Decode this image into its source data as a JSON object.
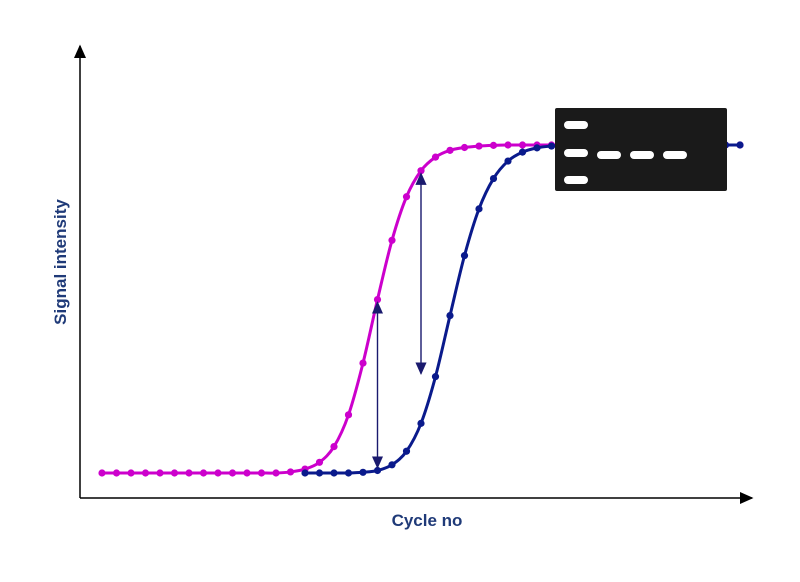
{
  "chart_data": {
    "type": "line",
    "xlabel": "Cycle no",
    "ylabel": "Signal intensity",
    "grid": false,
    "legend": "none",
    "x_ticks_shown": false,
    "y_ticks_shown": false,
    "xlim": [
      0,
      45
    ],
    "ylim": [
      0,
      100
    ],
    "series": [
      {
        "color": "#cc00cc",
        "x": [
          1,
          2,
          3,
          4,
          5,
          6,
          7,
          8,
          9,
          10,
          11,
          12,
          13,
          14,
          15,
          16,
          17,
          18,
          19,
          20,
          21,
          22,
          23,
          24,
          25,
          26,
          27,
          28,
          29,
          30,
          31,
          32,
          33,
          34,
          35,
          36,
          37,
          38,
          39,
          40,
          41,
          42,
          43,
          44,
          45
        ],
        "y": [
          7,
          7,
          7,
          7,
          7,
          7,
          7,
          7,
          7,
          7,
          7,
          7,
          7,
          7.3,
          8.1,
          10,
          14.4,
          23.3,
          37.8,
          55.6,
          72.2,
          84.4,
          91.7,
          95.5,
          97.4,
          98.2,
          98.6,
          98.8,
          98.9,
          98.9,
          98.9,
          98.9,
          98.9,
          98.9,
          98.9,
          98.9,
          98.9,
          98.9,
          98.9,
          98.9,
          98.9,
          98.9,
          98.9,
          98.9,
          98.9
        ]
      },
      {
        "color": "#0a1a8c",
        "x": [
          15,
          16,
          17,
          18,
          19,
          20,
          21,
          22,
          23,
          24,
          25,
          26,
          27,
          28,
          29,
          30,
          31,
          32,
          33,
          34,
          35,
          36,
          37,
          38,
          39,
          40,
          41,
          42,
          43,
          44,
          45
        ],
        "y": [
          7,
          7,
          7,
          7,
          7.2,
          7.7,
          9.3,
          13.1,
          20.9,
          34,
          51.1,
          67.9,
          81,
          89.5,
          94.4,
          96.9,
          98.1,
          98.6,
          98.8,
          98.9,
          98.9,
          98.9,
          98.9,
          98.9,
          98.9,
          98.9,
          98.9,
          98.9,
          98.9,
          98.9,
          98.9
        ]
      }
    ],
    "annotations": [
      {
        "type": "double-arrow",
        "x": 20,
        "y_from": 7.7,
        "y_to": 55.6
      },
      {
        "type": "double-arrow",
        "x": 23,
        "y_from": 34,
        "y_to": 91.7
      }
    ],
    "inset": {
      "type": "gel-band-image",
      "background": "#1a1a1a",
      "band_color": "#ffffff"
    }
  }
}
